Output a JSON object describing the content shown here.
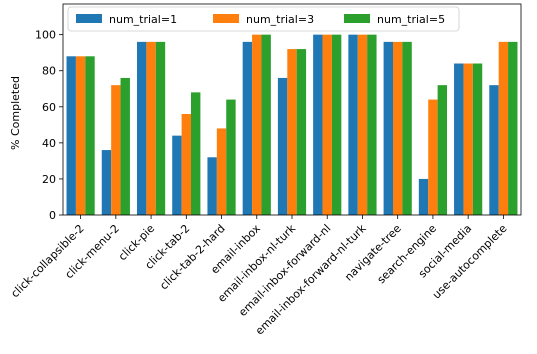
{
  "chart_data": {
    "type": "bar",
    "title": "",
    "xlabel": "",
    "ylabel": "% Completed",
    "ylim": [
      0,
      117
    ],
    "yticks": [
      0,
      20,
      40,
      60,
      80,
      100
    ],
    "grid": false,
    "legend_position": "top",
    "categories": [
      "click-collapsible-2",
      "click-menu-2",
      "click-pie",
      "click-tab-2",
      "click-tab-2-hard",
      "email-inbox",
      "email-inbox-nl-turk",
      "email-inbox-forward-nl",
      "email-inbox-forward-nl-turk",
      "navigate-tree",
      "search-engine",
      "social-media",
      "use-autocomplete"
    ],
    "series": [
      {
        "name": "num_trial=1",
        "color": "#1f77b4",
        "values": [
          88,
          36,
          96,
          44,
          32,
          96,
          76,
          100,
          100,
          96,
          20,
          84,
          72
        ]
      },
      {
        "name": "num_trial=3",
        "color": "#ff7f0e",
        "values": [
          88,
          72,
          96,
          56,
          48,
          100,
          92,
          100,
          100,
          96,
          64,
          84,
          96
        ]
      },
      {
        "name": "num_trial=5",
        "color": "#2ca02c",
        "values": [
          88,
          76,
          96,
          68,
          64,
          100,
          92,
          100,
          100,
          96,
          72,
          84,
          96
        ]
      }
    ]
  }
}
